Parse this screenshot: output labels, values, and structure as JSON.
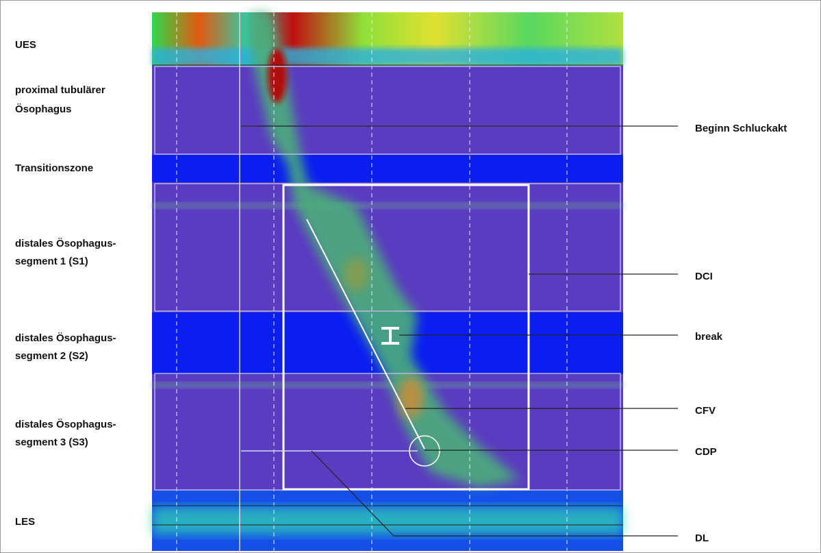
{
  "left_labels": [
    [
      "UES"
    ],
    [
      "proximal tubulärer",
      "Ösophagus"
    ],
    [
      "Transitionszone"
    ],
    [
      "distales Ösophagus-",
      "segment 1 (S1)"
    ],
    [
      "distales Ösophagus-",
      "segment 2 (S2)"
    ],
    [
      "distales Ösophagus-",
      "segment 3 (S3)"
    ],
    [
      "LES"
    ]
  ],
  "right_labels": [
    "Beginn Schluckakt",
    "DCI",
    "break",
    "CFV",
    "CDP",
    "DL"
  ]
}
